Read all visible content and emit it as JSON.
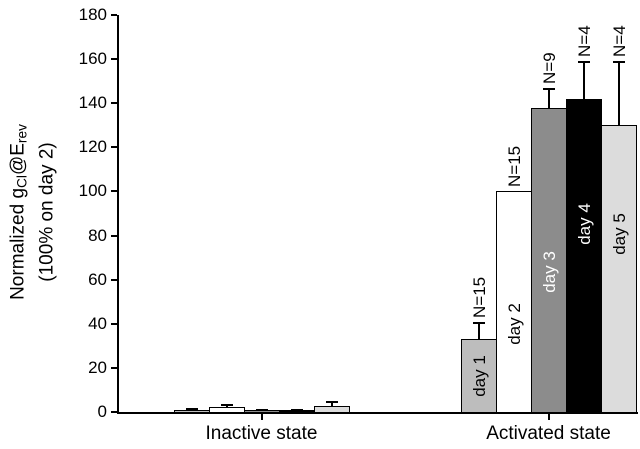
{
  "figure": {
    "background": "#ffffff",
    "axis_color": "#000000",
    "text_color": "#000000"
  },
  "chart_data": {
    "type": "bar",
    "title": "",
    "ylabel": {
      "pre": "Normalized g",
      "sub1": "Cl",
      "mid": "@E",
      "sub2": "rev",
      "line2": "(100% on day 2)"
    },
    "xlabel": "",
    "ylim": [
      0,
      180
    ],
    "yticks": [
      0,
      20,
      40,
      60,
      80,
      100,
      120,
      140,
      160,
      180
    ],
    "categories": [
      "Inactive state",
      "Activated state"
    ],
    "grid": false,
    "legend_position": "none",
    "series": [
      {
        "name": "day 1",
        "color": "#bdbdbd",
        "label_color": "#000000",
        "values": [
          1.0,
          33
        ],
        "errors": [
          0.8,
          8
        ],
        "n_label": "N=15"
      },
      {
        "name": "day 2",
        "color": "#ffffff",
        "label_color": "#000000",
        "values": [
          2.3,
          100
        ],
        "errors": [
          1.5,
          0
        ],
        "n_label": "N=15"
      },
      {
        "name": "day 3",
        "color": "#8c8c8c",
        "label_color": "#ffffff",
        "values": [
          0.9,
          138
        ],
        "errors": [
          0.3,
          9
        ],
        "n_label": "N=9"
      },
      {
        "name": "day 4",
        "color": "#000000",
        "label_color": "#ffffff",
        "values": [
          1.1,
          142
        ],
        "errors": [
          0.3,
          17
        ],
        "n_label": "N=4"
      },
      {
        "name": "day 5",
        "color": "#dcdcdc",
        "label_color": "#000000",
        "values": [
          2.6,
          130
        ],
        "errors": [
          2.2,
          29
        ],
        "n_label": "N=4"
      }
    ],
    "day_labels_shown_in_category": "Activated state",
    "n_labels_shown_in_category": "Activated state"
  }
}
